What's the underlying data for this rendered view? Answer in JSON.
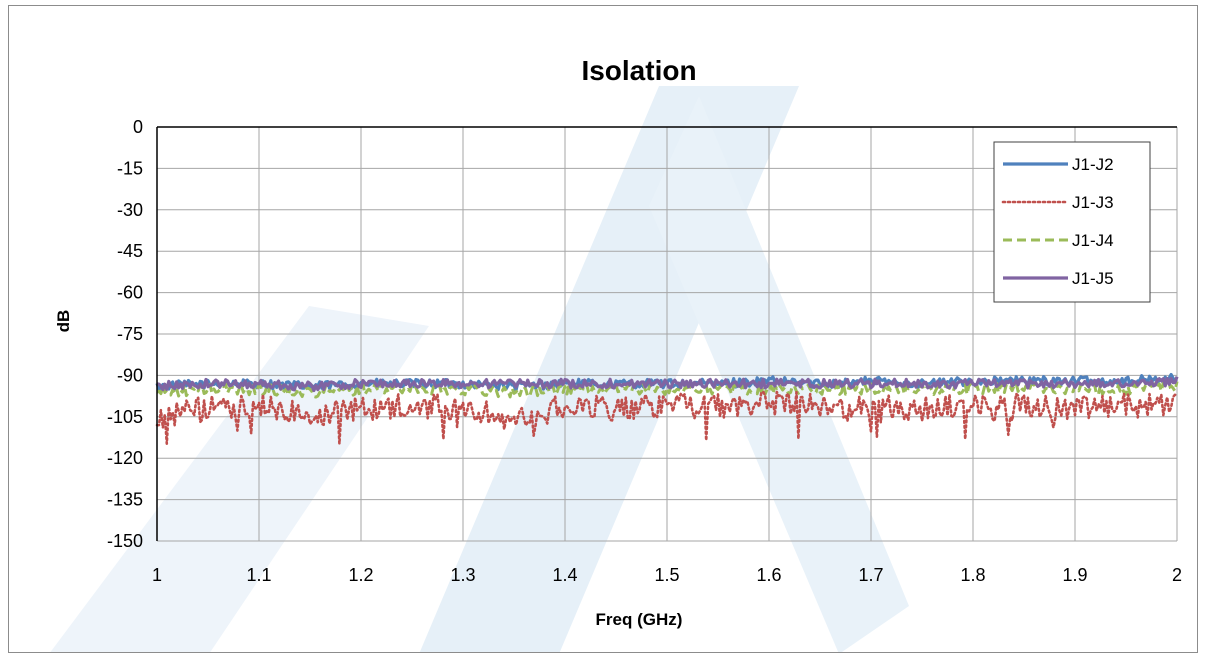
{
  "chart_data": {
    "type": "line",
    "title": "Isolation",
    "xlabel": "Freq (GHz)",
    "ylabel": "dB",
    "xlim": [
      1,
      2
    ],
    "ylim": [
      -150,
      0
    ],
    "x_ticks": [
      1,
      1.1,
      1.2,
      1.3,
      1.4,
      1.5,
      1.6,
      1.7,
      1.8,
      1.9,
      2
    ],
    "x_tick_labels": [
      "1",
      "1.1",
      "1.2",
      "1.3",
      "1.4",
      "1.5",
      "1.6",
      "1.7",
      "1.8",
      "1.9",
      "2"
    ],
    "y_ticks": [
      0,
      -15,
      -30,
      -45,
      -60,
      -75,
      -90,
      -105,
      -120,
      -135,
      -150
    ],
    "y_tick_labels": [
      "0",
      "-15",
      "-30",
      "-45",
      "-60",
      "-75",
      "-90",
      "-105",
      "-120",
      "-135",
      "-150"
    ],
    "grid": true,
    "legend_position": "top-right",
    "x": [
      1.0,
      1.05,
      1.1,
      1.15,
      1.2,
      1.25,
      1.3,
      1.35,
      1.4,
      1.45,
      1.5,
      1.55,
      1.6,
      1.65,
      1.7,
      1.75,
      1.8,
      1.85,
      1.9,
      1.95,
      2.0
    ],
    "series": [
      {
        "name": "J1-J2",
        "color": "#4f81bd",
        "style": "solid",
        "values": [
          -94,
          -93,
          -93,
          -94,
          -93,
          -93,
          -93,
          -94,
          -93,
          -93,
          -93,
          -93,
          -92,
          -93,
          -92,
          -93,
          -92,
          -92,
          -92,
          -92,
          -91
        ]
      },
      {
        "name": "J1-J3",
        "color": "#c0504d",
        "style": "dotted",
        "values": [
          -105,
          -102,
          -101,
          -104,
          -102,
          -101,
          -102,
          -106,
          -101,
          -102,
          -101,
          -101,
          -100,
          -101,
          -101,
          -102,
          -101,
          -101,
          -102,
          -101,
          -100
        ]
      },
      {
        "name": "J1-J4",
        "color": "#9bbb59",
        "style": "dashed",
        "values": [
          -96,
          -95,
          -95,
          -96,
          -95,
          -95,
          -95,
          -96,
          -95,
          -95,
          -95,
          -95,
          -95,
          -95,
          -95,
          -95,
          -95,
          -94,
          -95,
          -95,
          -94
        ]
      },
      {
        "name": "J1-J5",
        "color": "#8064a2",
        "style": "solid",
        "values": [
          -94,
          -93,
          -93,
          -94,
          -93,
          -93,
          -93,
          -93,
          -93,
          -93,
          -93,
          -93,
          -93,
          -93,
          -93,
          -93,
          -93,
          -93,
          -93,
          -93,
          -92
        ]
      }
    ]
  }
}
